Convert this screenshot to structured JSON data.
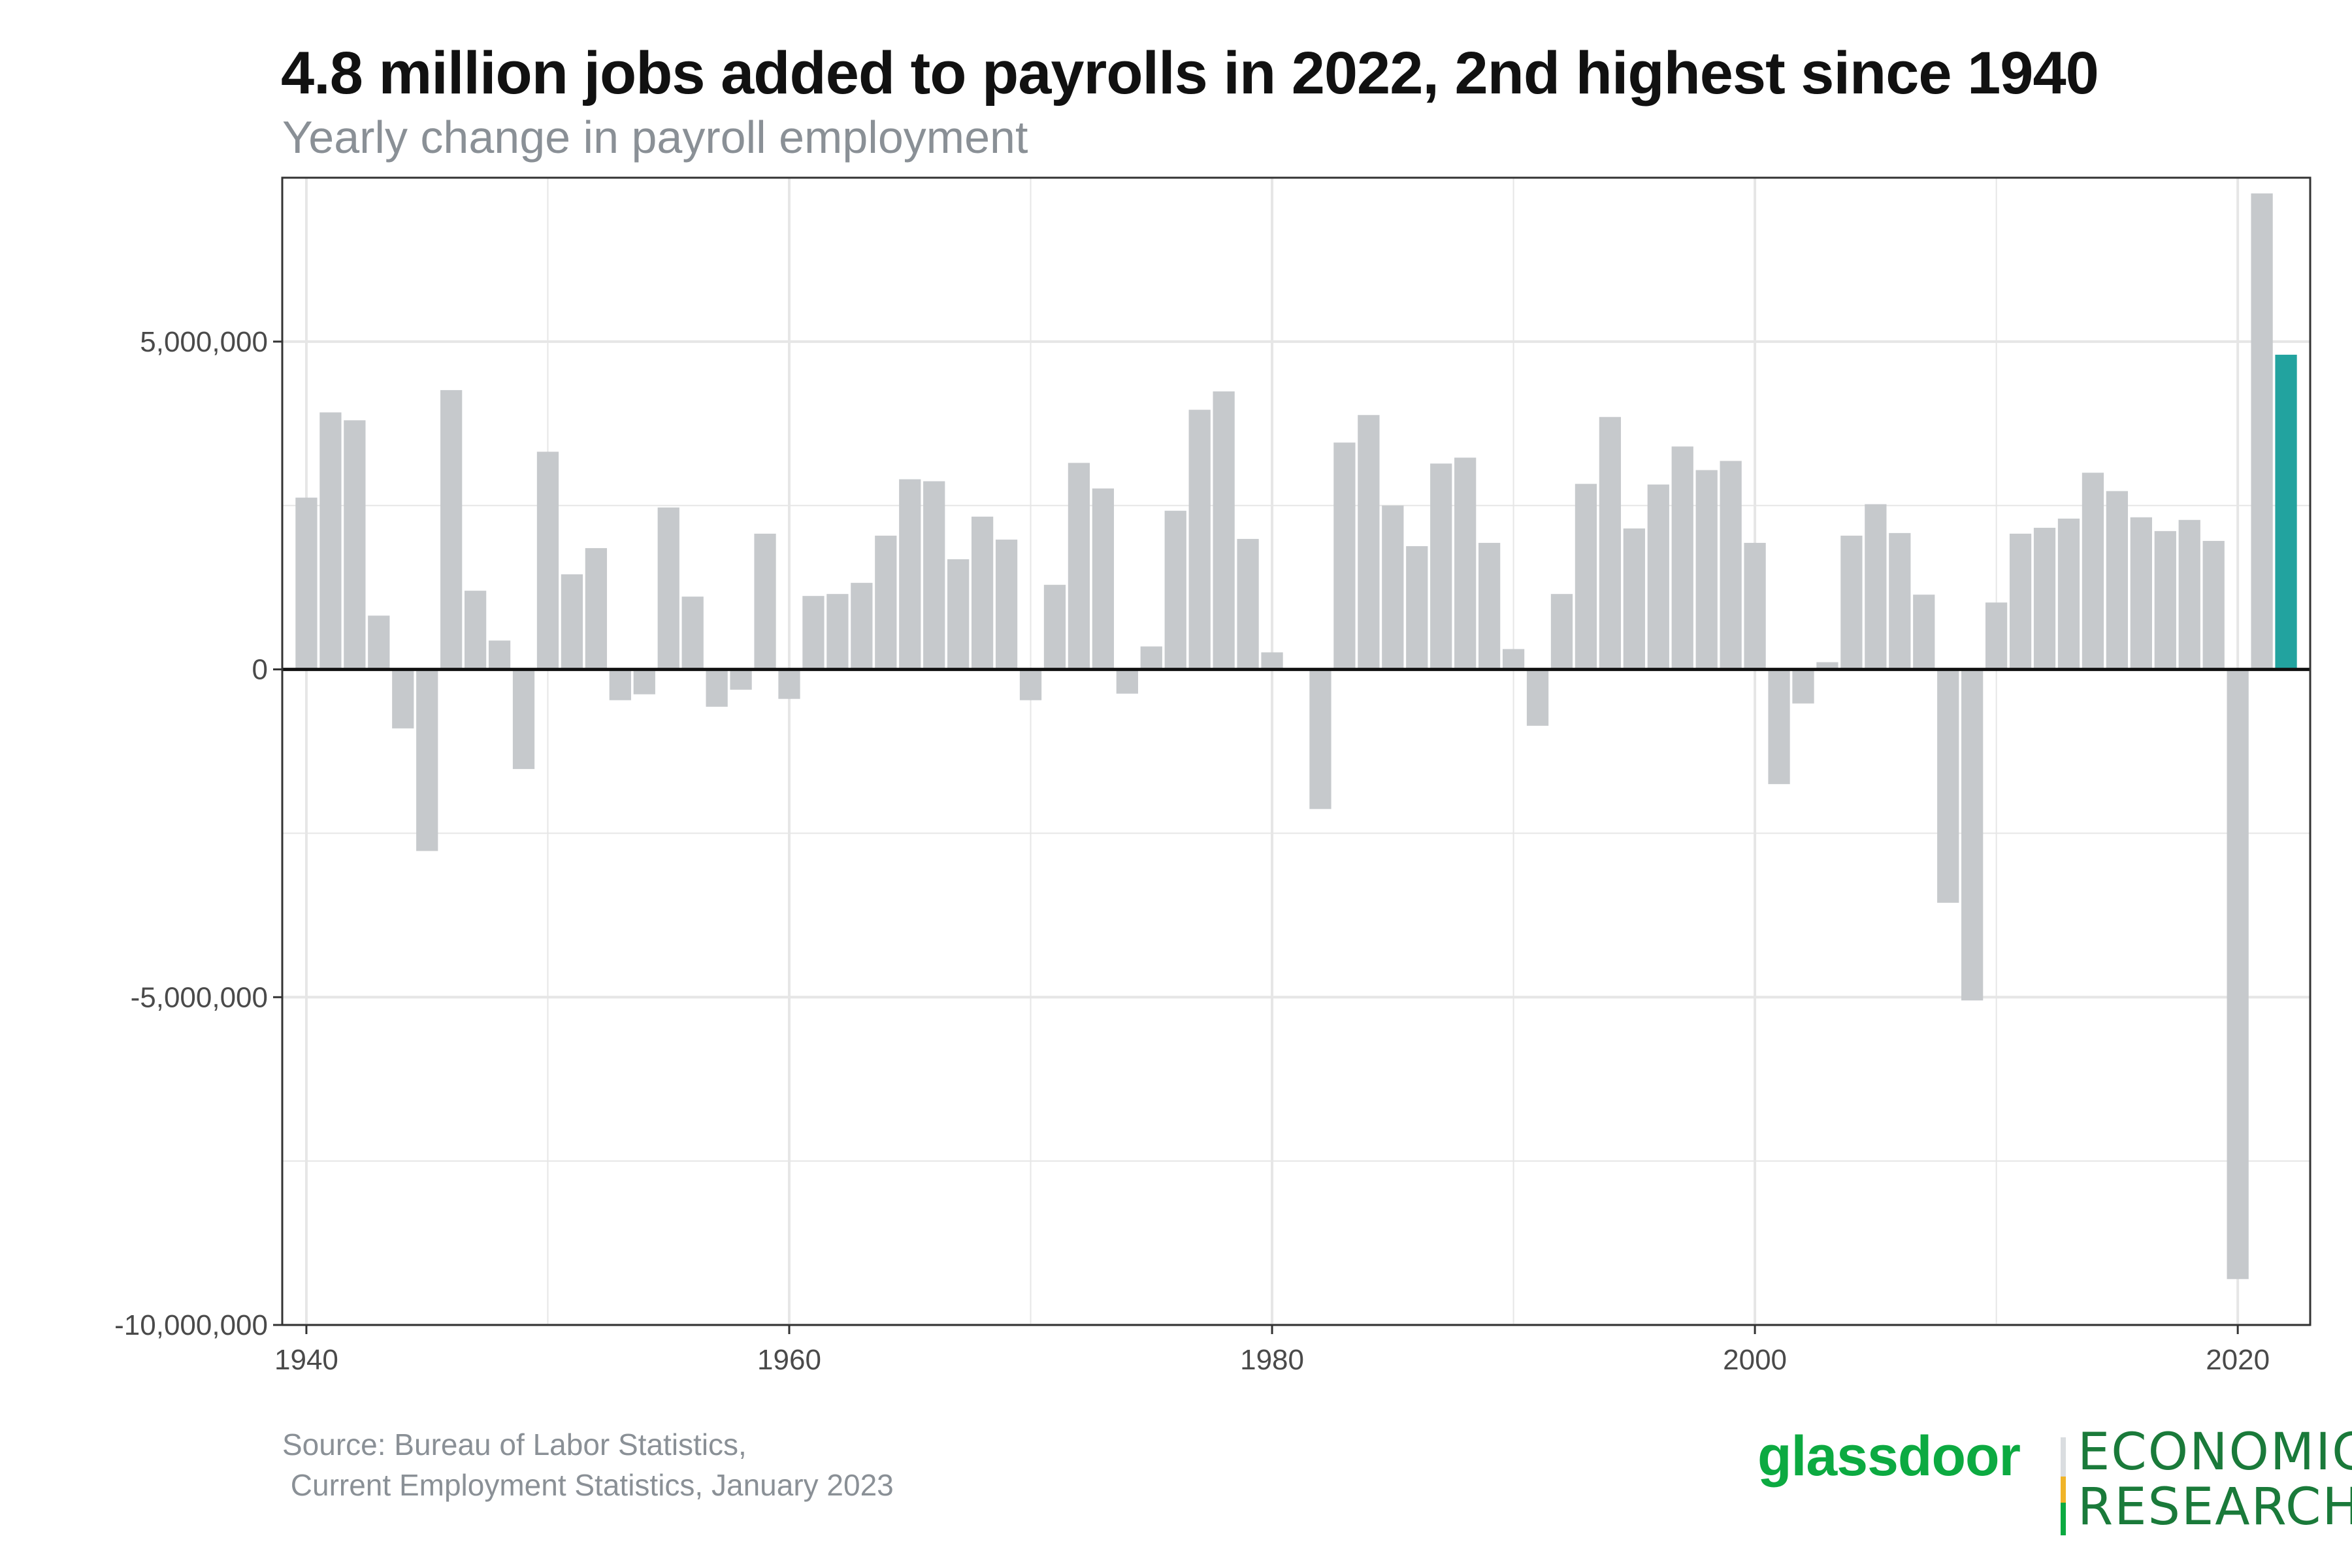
{
  "title": "4.8 million jobs added to payrolls in 2022, 2nd highest since 1940",
  "subtitle": "Yearly change in payroll employment",
  "source": "Source: Bureau of Labor Statistics,\n Current Employment Statistics, January 2023",
  "logo": {
    "wordmark": "glassdoor",
    "line1": "ECONOMIC",
    "line2": "RESEARCH"
  },
  "colors": {
    "bar": "#c6c9cc",
    "highlight": "#22a39f",
    "grid": "#e6e6e6",
    "zero_line": "#111111"
  },
  "chart_data": {
    "type": "bar",
    "title": "4.8 million jobs added to payrolls in 2022, 2nd highest since 1940",
    "subtitle": "Yearly change in payroll employment",
    "xlabel": "",
    "ylabel": "",
    "xlim": [
      1939,
      2023
    ],
    "ylim": [
      -10000000,
      7500000
    ],
    "x_ticks": [
      1940,
      1960,
      1980,
      2000,
      2020
    ],
    "y_ticks": [
      5000000,
      0,
      -5000000,
      -10000000
    ],
    "y_tick_labels": [
      "5,000,000",
      "0",
      "-5,000,000",
      "-10,000,000"
    ],
    "grid": true,
    "highlight_year": 2022,
    "x": [
      1940,
      1941,
      1942,
      1943,
      1944,
      1945,
      1946,
      1947,
      1948,
      1949,
      1950,
      1951,
      1952,
      1953,
      1954,
      1955,
      1956,
      1957,
      1958,
      1959,
      1960,
      1961,
      1962,
      1963,
      1964,
      1965,
      1966,
      1967,
      1968,
      1969,
      1970,
      1971,
      1972,
      1973,
      1974,
      1975,
      1976,
      1977,
      1978,
      1979,
      1980,
      1981,
      1982,
      1983,
      1984,
      1985,
      1986,
      1987,
      1988,
      1989,
      1990,
      1991,
      1992,
      1993,
      1994,
      1995,
      1996,
      1997,
      1998,
      1999,
      2000,
      2001,
      2002,
      2003,
      2004,
      2005,
      2006,
      2007,
      2008,
      2009,
      2010,
      2011,
      2012,
      2013,
      2014,
      2015,
      2016,
      2017,
      2018,
      2019,
      2020,
      2021,
      2022
    ],
    "values": [
      2620000,
      3920000,
      3800000,
      820000,
      -900000,
      -2770000,
      4260000,
      1200000,
      440000,
      -1520000,
      3320000,
      1450000,
      1850000,
      -470000,
      -380000,
      2470000,
      1110000,
      -570000,
      -310000,
      2070000,
      -450000,
      1120000,
      1150000,
      1320000,
      2040000,
      2900000,
      2870000,
      1680000,
      2330000,
      1980000,
      -470000,
      1290000,
      3150000,
      2760000,
      -370000,
      350000,
      2420000,
      3960000,
      4240000,
      1990000,
      260000,
      0,
      -2130000,
      3460000,
      3880000,
      2500000,
      1880000,
      3140000,
      3230000,
      1930000,
      310000,
      -860000,
      1150000,
      2830000,
      3850000,
      2150000,
      2820000,
      3400000,
      3040000,
      3180000,
      1930000,
      -1750000,
      -520000,
      110000,
      2040000,
      2520000,
      2080000,
      1140000,
      -3560000,
      -5050000,
      1020000,
      2070000,
      2160000,
      2300000,
      3000000,
      2720000,
      2320000,
      2110000,
      2280000,
      1960000,
      -9300000,
      7260000,
      4800000
    ]
  }
}
